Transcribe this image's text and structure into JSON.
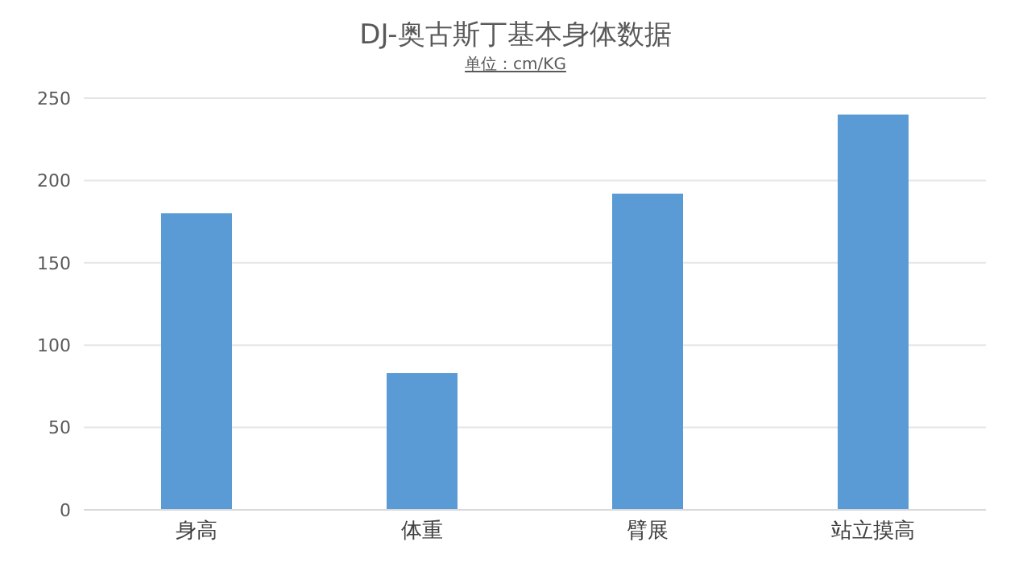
{
  "chart_data": {
    "type": "bar",
    "title": "DJ-奥古斯丁基本身体数据",
    "subtitle": "单位：cm/KG",
    "categories": [
      "身高",
      "体重",
      "臂展",
      "站立摸高"
    ],
    "values": [
      180,
      83,
      192,
      240
    ],
    "color": "#5b9bd5",
    "ylim": [
      0,
      250
    ],
    "yticks": [
      0,
      50,
      100,
      150,
      200,
      250
    ],
    "grid": "y"
  }
}
